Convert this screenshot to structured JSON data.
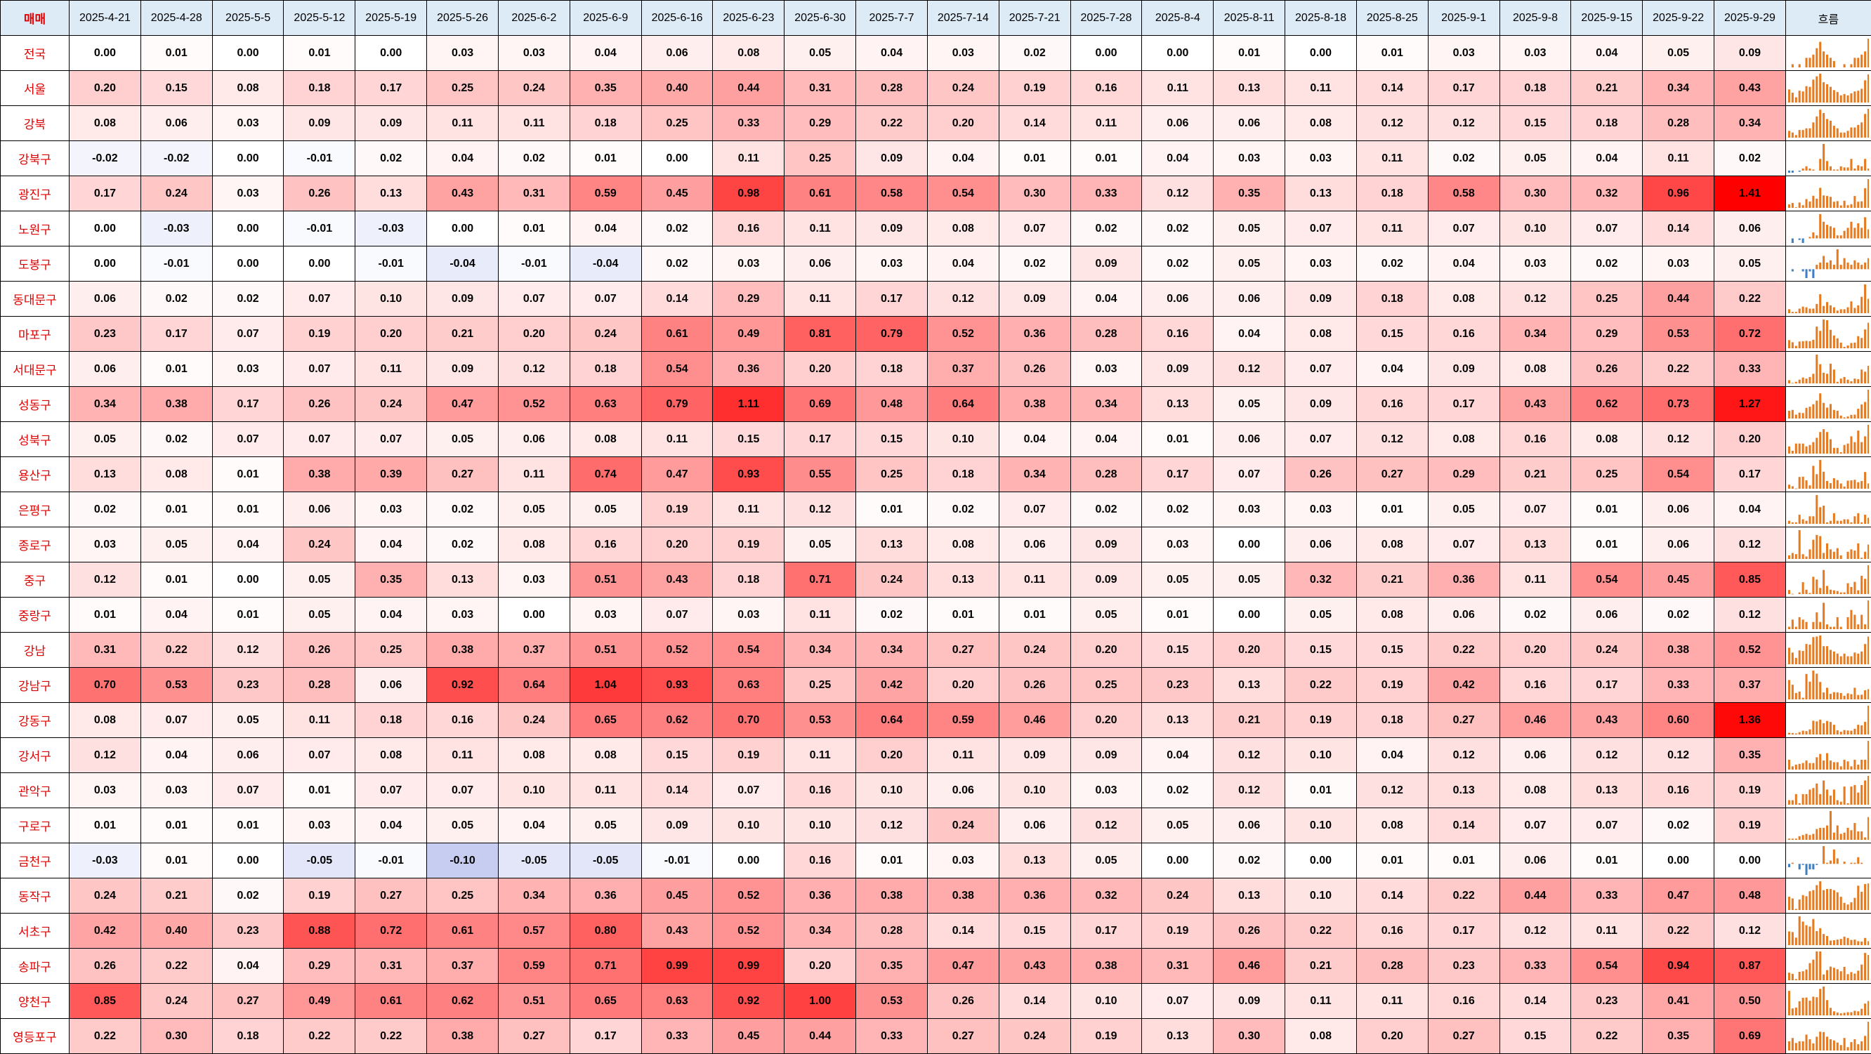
{
  "chart_data": {
    "type": "heatmap",
    "corner_label": "매매",
    "trend_label": "흐름",
    "columns": [
      "2025-4-21",
      "2025-4-28",
      "2025-5-5",
      "2025-5-12",
      "2025-5-19",
      "2025-5-26",
      "2025-6-2",
      "2025-6-9",
      "2025-6-16",
      "2025-6-23",
      "2025-6-30",
      "2025-7-7",
      "2025-7-14",
      "2025-7-21",
      "2025-7-28",
      "2025-8-4",
      "2025-8-11",
      "2025-8-18",
      "2025-8-25",
      "2025-9-1",
      "2025-9-8",
      "2025-9-15",
      "2025-9-22",
      "2025-9-29"
    ],
    "colors": {
      "positive_max": "#ff0000",
      "negative_max": "#5b6fd6",
      "zero": "#ffffff",
      "bar_positive": "#e87a1e",
      "bar_negative": "#3f7fc4",
      "header_bg": "#ddebf7",
      "row_label": "#e00000"
    },
    "rows": [
      {
        "name": "전국",
        "values": [
          0.0,
          0.01,
          0.0,
          0.01,
          0.0,
          0.03,
          0.03,
          0.04,
          0.06,
          0.08,
          0.05,
          0.04,
          0.03,
          0.02,
          0.0,
          0.0,
          0.01,
          0.0,
          0.01,
          0.03,
          0.03,
          0.04,
          0.05,
          0.09
        ]
      },
      {
        "name": "서울",
        "values": [
          0.2,
          0.15,
          0.08,
          0.18,
          0.17,
          0.25,
          0.24,
          0.35,
          0.4,
          0.44,
          0.31,
          0.28,
          0.24,
          0.19,
          0.16,
          0.11,
          0.13,
          0.11,
          0.14,
          0.17,
          0.18,
          0.21,
          0.34,
          0.43
        ]
      },
      {
        "name": "강북",
        "values": [
          0.08,
          0.06,
          0.03,
          0.09,
          0.09,
          0.11,
          0.11,
          0.18,
          0.25,
          0.33,
          0.29,
          0.22,
          0.2,
          0.14,
          0.11,
          0.06,
          0.06,
          0.08,
          0.12,
          0.12,
          0.15,
          0.18,
          0.28,
          0.34
        ]
      },
      {
        "name": "강북구",
        "values": [
          -0.02,
          -0.02,
          0.0,
          -0.01,
          0.02,
          0.04,
          0.02,
          0.01,
          0.0,
          0.11,
          0.25,
          0.09,
          0.04,
          0.01,
          0.01,
          0.04,
          0.03,
          0.03,
          0.11,
          0.02,
          0.05,
          0.04,
          0.11,
          0.02
        ]
      },
      {
        "name": "광진구",
        "values": [
          0.17,
          0.24,
          0.03,
          0.26,
          0.13,
          0.43,
          0.31,
          0.59,
          0.45,
          0.98,
          0.61,
          0.58,
          0.54,
          0.3,
          0.33,
          0.12,
          0.35,
          0.13,
          0.18,
          0.58,
          0.3,
          0.32,
          0.96,
          1.41
        ]
      },
      {
        "name": "노원구",
        "values": [
          0.0,
          -0.03,
          0.0,
          -0.01,
          -0.03,
          0.0,
          0.01,
          0.04,
          0.02,
          0.16,
          0.11,
          0.09,
          0.08,
          0.07,
          0.02,
          0.02,
          0.05,
          0.07,
          0.11,
          0.07,
          0.1,
          0.07,
          0.14,
          0.06
        ]
      },
      {
        "name": "도봉구",
        "values": [
          0.0,
          -0.01,
          0.0,
          0.0,
          -0.01,
          -0.04,
          -0.01,
          -0.04,
          0.02,
          0.03,
          0.06,
          0.03,
          0.04,
          0.02,
          0.09,
          0.02,
          0.05,
          0.03,
          0.02,
          0.04,
          0.03,
          0.02,
          0.03,
          0.05
        ]
      },
      {
        "name": "동대문구",
        "values": [
          0.06,
          0.02,
          0.02,
          0.07,
          0.1,
          0.09,
          0.07,
          0.07,
          0.14,
          0.29,
          0.11,
          0.17,
          0.12,
          0.09,
          0.04,
          0.06,
          0.06,
          0.09,
          0.18,
          0.08,
          0.12,
          0.25,
          0.44,
          0.22
        ]
      },
      {
        "name": "마포구",
        "values": [
          0.23,
          0.17,
          0.07,
          0.19,
          0.2,
          0.21,
          0.2,
          0.24,
          0.61,
          0.49,
          0.81,
          0.79,
          0.52,
          0.36,
          0.28,
          0.16,
          0.04,
          0.08,
          0.15,
          0.16,
          0.34,
          0.29,
          0.53,
          0.72
        ]
      },
      {
        "name": "서대문구",
        "values": [
          0.06,
          0.01,
          0.03,
          0.07,
          0.11,
          0.09,
          0.12,
          0.18,
          0.54,
          0.36,
          0.2,
          0.18,
          0.37,
          0.26,
          0.03,
          0.09,
          0.12,
          0.07,
          0.04,
          0.09,
          0.08,
          0.26,
          0.22,
          0.33
        ]
      },
      {
        "name": "성동구",
        "values": [
          0.34,
          0.38,
          0.17,
          0.26,
          0.24,
          0.47,
          0.52,
          0.63,
          0.79,
          1.11,
          0.69,
          0.48,
          0.64,
          0.38,
          0.34,
          0.13,
          0.05,
          0.09,
          0.16,
          0.17,
          0.43,
          0.62,
          0.73,
          1.27
        ]
      },
      {
        "name": "성북구",
        "values": [
          0.05,
          0.02,
          0.07,
          0.07,
          0.07,
          0.05,
          0.06,
          0.08,
          0.11,
          0.15,
          0.17,
          0.15,
          0.1,
          0.04,
          0.04,
          0.01,
          0.06,
          0.07,
          0.12,
          0.08,
          0.16,
          0.08,
          0.12,
          0.2
        ]
      },
      {
        "name": "용산구",
        "values": [
          0.13,
          0.08,
          0.01,
          0.38,
          0.39,
          0.27,
          0.11,
          0.74,
          0.47,
          0.93,
          0.55,
          0.25,
          0.18,
          0.34,
          0.28,
          0.17,
          0.07,
          0.26,
          0.27,
          0.29,
          0.21,
          0.25,
          0.54,
          0.17
        ]
      },
      {
        "name": "은평구",
        "values": [
          0.02,
          0.01,
          0.01,
          0.06,
          0.03,
          0.02,
          0.05,
          0.05,
          0.19,
          0.11,
          0.12,
          0.01,
          0.02,
          0.07,
          0.02,
          0.02,
          0.03,
          0.03,
          0.01,
          0.05,
          0.07,
          0.01,
          0.06,
          0.04
        ]
      },
      {
        "name": "종로구",
        "values": [
          0.03,
          0.05,
          0.04,
          0.24,
          0.04,
          0.02,
          0.08,
          0.16,
          0.2,
          0.19,
          0.05,
          0.13,
          0.08,
          0.06,
          0.09,
          0.03,
          0.0,
          0.06,
          0.08,
          0.07,
          0.13,
          0.01,
          0.06,
          0.12
        ]
      },
      {
        "name": "중구",
        "values": [
          0.12,
          0.01,
          0.0,
          0.05,
          0.35,
          0.13,
          0.03,
          0.51,
          0.43,
          0.18,
          0.71,
          0.24,
          0.13,
          0.11,
          0.09,
          0.05,
          0.05,
          0.32,
          0.21,
          0.36,
          0.11,
          0.54,
          0.45,
          0.85
        ]
      },
      {
        "name": "중랑구",
        "values": [
          0.01,
          0.04,
          0.01,
          0.05,
          0.04,
          0.03,
          0.0,
          0.03,
          0.07,
          0.03,
          0.11,
          0.02,
          0.01,
          0.01,
          0.05,
          0.01,
          0.0,
          0.05,
          0.08,
          0.06,
          0.02,
          0.06,
          0.02,
          0.12
        ]
      },
      {
        "name": "강남",
        "values": [
          0.31,
          0.22,
          0.12,
          0.26,
          0.25,
          0.38,
          0.37,
          0.51,
          0.52,
          0.54,
          0.34,
          0.34,
          0.27,
          0.24,
          0.2,
          0.15,
          0.2,
          0.15,
          0.15,
          0.22,
          0.2,
          0.24,
          0.38,
          0.52
        ]
      },
      {
        "name": "강남구",
        "values": [
          0.7,
          0.53,
          0.23,
          0.28,
          0.06,
          0.92,
          0.64,
          1.04,
          0.93,
          0.63,
          0.25,
          0.42,
          0.2,
          0.26,
          0.25,
          0.23,
          0.13,
          0.22,
          0.19,
          0.42,
          0.16,
          0.17,
          0.33,
          0.37
        ]
      },
      {
        "name": "강동구",
        "values": [
          0.08,
          0.07,
          0.05,
          0.11,
          0.18,
          0.16,
          0.24,
          0.65,
          0.62,
          0.7,
          0.53,
          0.64,
          0.59,
          0.46,
          0.2,
          0.13,
          0.21,
          0.19,
          0.18,
          0.27,
          0.46,
          0.43,
          0.6,
          1.36
        ]
      },
      {
        "name": "강서구",
        "values": [
          0.12,
          0.04,
          0.06,
          0.07,
          0.08,
          0.11,
          0.08,
          0.08,
          0.15,
          0.19,
          0.11,
          0.2,
          0.11,
          0.09,
          0.09,
          0.04,
          0.12,
          0.1,
          0.04,
          0.12,
          0.06,
          0.12,
          0.12,
          0.35
        ]
      },
      {
        "name": "관악구",
        "values": [
          0.03,
          0.03,
          0.07,
          0.01,
          0.07,
          0.07,
          0.1,
          0.11,
          0.14,
          0.07,
          0.16,
          0.1,
          0.06,
          0.1,
          0.03,
          0.02,
          0.12,
          0.01,
          0.12,
          0.13,
          0.08,
          0.13,
          0.16,
          0.19
        ]
      },
      {
        "name": "구로구",
        "values": [
          0.01,
          0.01,
          0.01,
          0.03,
          0.04,
          0.05,
          0.04,
          0.05,
          0.09,
          0.1,
          0.1,
          0.12,
          0.24,
          0.06,
          0.12,
          0.05,
          0.06,
          0.1,
          0.08,
          0.14,
          0.07,
          0.07,
          0.02,
          0.19
        ]
      },
      {
        "name": "금천구",
        "values": [
          -0.03,
          0.01,
          0.0,
          -0.05,
          -0.01,
          -0.1,
          -0.05,
          -0.05,
          -0.01,
          0.0,
          0.16,
          0.01,
          0.03,
          0.13,
          0.05,
          0.0,
          0.02,
          0.0,
          0.01,
          0.01,
          0.06,
          0.01,
          0.0,
          0.0
        ]
      },
      {
        "name": "동작구",
        "values": [
          0.24,
          0.21,
          0.02,
          0.19,
          0.27,
          0.25,
          0.34,
          0.36,
          0.45,
          0.52,
          0.36,
          0.38,
          0.38,
          0.36,
          0.32,
          0.24,
          0.13,
          0.1,
          0.14,
          0.22,
          0.44,
          0.33,
          0.47,
          0.48
        ]
      },
      {
        "name": "서초구",
        "values": [
          0.42,
          0.4,
          0.23,
          0.88,
          0.72,
          0.61,
          0.57,
          0.8,
          0.43,
          0.52,
          0.34,
          0.28,
          0.14,
          0.15,
          0.17,
          0.19,
          0.26,
          0.22,
          0.16,
          0.17,
          0.12,
          0.11,
          0.22,
          0.12
        ]
      },
      {
        "name": "송파구",
        "values": [
          0.26,
          0.22,
          0.04,
          0.29,
          0.31,
          0.37,
          0.59,
          0.71,
          0.99,
          0.99,
          0.2,
          0.35,
          0.47,
          0.43,
          0.38,
          0.31,
          0.46,
          0.21,
          0.28,
          0.23,
          0.33,
          0.54,
          0.94,
          0.87
        ]
      },
      {
        "name": "양천구",
        "values": [
          0.85,
          0.24,
          0.27,
          0.49,
          0.61,
          0.62,
          0.51,
          0.65,
          0.63,
          0.92,
          1.0,
          0.53,
          0.26,
          0.14,
          0.1,
          0.07,
          0.09,
          0.11,
          0.11,
          0.16,
          0.14,
          0.23,
          0.41,
          0.5
        ]
      },
      {
        "name": "영등포구",
        "values": [
          0.22,
          0.3,
          0.18,
          0.22,
          0.22,
          0.38,
          0.27,
          0.17,
          0.33,
          0.45,
          0.44,
          0.33,
          0.27,
          0.24,
          0.19,
          0.13,
          0.3,
          0.08,
          0.2,
          0.27,
          0.15,
          0.22,
          0.35,
          0.69
        ]
      }
    ]
  }
}
